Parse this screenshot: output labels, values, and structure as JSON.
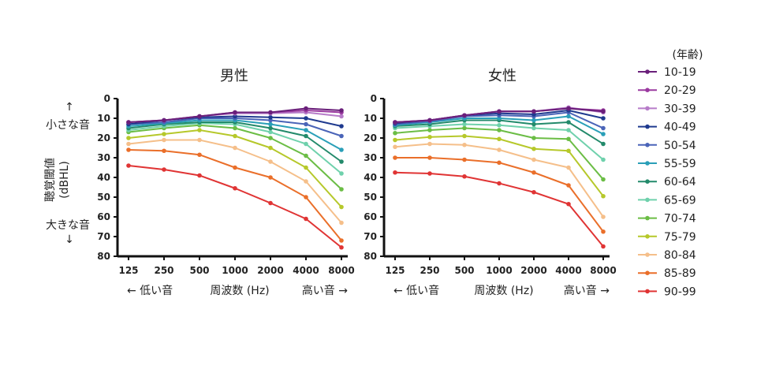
{
  "colors": {
    "10-19": "#6a1f7a",
    "20-29": "#9b3aa0",
    "30-39": "#b77cc9",
    "40-49": "#1f3a8f",
    "50-54": "#4a64b8",
    "55-59": "#2a9fb8",
    "60-64": "#238a6b",
    "65-69": "#6fd1ac",
    "70-74": "#6bbd45",
    "75-79": "#b6c82a",
    "80-84": "#f5bf8a",
    "85-89": "#ea6f2a",
    "90-99": "#e03434"
  },
  "legend": {
    "title": "(年齢)",
    "items": [
      "10-19",
      "20-29",
      "30-39",
      "40-49",
      "50-54",
      "55-59",
      "60-64",
      "65-69",
      "70-74",
      "75-79",
      "80-84",
      "85-89",
      "90-99"
    ]
  },
  "y_axis": {
    "top_label": "↑\n小さな音",
    "middle_label": "聴覚閾値\n(dBHL)",
    "bottom_label": "大きな音\n↓"
  },
  "x_axis": {
    "low_label": "← 低い音",
    "center_label": "周波数 (Hz)",
    "high_label": "高い音 →"
  },
  "chart_data": [
    {
      "type": "line",
      "title": "男性",
      "categories": [
        "125",
        "250",
        "500",
        "1000",
        "2000",
        "4000",
        "8000"
      ],
      "ylim": [
        0,
        80
      ],
      "y_inverted": true,
      "yticks": [
        0,
        10,
        20,
        30,
        40,
        50,
        60,
        70,
        80
      ],
      "series": [
        {
          "name": "10-19",
          "values": [
            12,
            11,
            9,
            7,
            7,
            5,
            6
          ]
        },
        {
          "name": "20-29",
          "values": [
            12,
            11,
            9,
            7,
            7,
            6,
            7
          ]
        },
        {
          "name": "30-39",
          "values": [
            12,
            11,
            9,
            7.5,
            7.5,
            7,
            9
          ]
        },
        {
          "name": "40-49",
          "values": [
            13,
            11,
            9.5,
            9,
            9.5,
            10,
            14
          ]
        },
        {
          "name": "50-54",
          "values": [
            13,
            12,
            10,
            10,
            11,
            13,
            19
          ]
        },
        {
          "name": "55-59",
          "values": [
            14,
            12.5,
            11,
            11,
            13,
            16,
            26
          ]
        },
        {
          "name": "60-64",
          "values": [
            15,
            13,
            12,
            12,
            15,
            19,
            32
          ]
        },
        {
          "name": "65-69",
          "values": [
            16,
            14,
            12.5,
            13,
            17,
            23,
            38
          ]
        },
        {
          "name": "70-74",
          "values": [
            17,
            15,
            13.5,
            15,
            20,
            29,
            46
          ]
        },
        {
          "name": "75-79",
          "values": [
            20,
            18,
            16,
            19,
            25,
            35,
            55
          ]
        },
        {
          "name": "80-84",
          "values": [
            23,
            21,
            21,
            25,
            32,
            42,
            63
          ]
        },
        {
          "name": "85-89",
          "values": [
            26,
            26.5,
            28.5,
            35,
            40,
            50,
            72
          ]
        },
        {
          "name": "90-99",
          "values": [
            34,
            36,
            39,
            45.5,
            53,
            61,
            75.5
          ]
        }
      ]
    },
    {
      "type": "line",
      "title": "女性",
      "categories": [
        "125",
        "250",
        "500",
        "1000",
        "2000",
        "4000",
        "8000"
      ],
      "ylim": [
        0,
        80
      ],
      "y_inverted": true,
      "yticks": [
        0,
        10,
        20,
        30,
        40,
        50,
        60,
        70,
        80
      ],
      "series": [
        {
          "name": "10-19",
          "values": [
            12,
            11,
            8.5,
            6.5,
            6.5,
            5,
            6.5
          ]
        },
        {
          "name": "20-29",
          "values": [
            12,
            11,
            8.5,
            6.5,
            6.5,
            5,
            6
          ]
        },
        {
          "name": "30-39",
          "values": [
            12,
            11,
            8.5,
            6.5,
            6.5,
            4.5,
            7
          ]
        },
        {
          "name": "40-49",
          "values": [
            12.5,
            11,
            8.5,
            7.5,
            8,
            6,
            10
          ]
        },
        {
          "name": "50-54",
          "values": [
            13,
            11.5,
            9,
            8.5,
            9,
            7,
            15
          ]
        },
        {
          "name": "55-59",
          "values": [
            13.5,
            12,
            10,
            10,
            11,
            9,
            18
          ]
        },
        {
          "name": "60-64",
          "values": [
            14,
            13,
            11,
            11,
            13,
            12,
            23
          ]
        },
        {
          "name": "65-69",
          "values": [
            15,
            14,
            13,
            13.5,
            15,
            16,
            31
          ]
        },
        {
          "name": "70-74",
          "values": [
            17.5,
            16,
            15,
            16,
            20,
            20.5,
            41
          ]
        },
        {
          "name": "75-79",
          "values": [
            21,
            19.5,
            19,
            20.5,
            25.5,
            26.5,
            49.5
          ]
        },
        {
          "name": "80-84",
          "values": [
            24.5,
            23,
            23.5,
            26,
            31,
            35,
            60
          ]
        },
        {
          "name": "85-89",
          "values": [
            30,
            30,
            31,
            32.5,
            37.5,
            44,
            67.5
          ]
        },
        {
          "name": "90-99",
          "values": [
            37.5,
            38,
            39.5,
            43,
            47.5,
            53.5,
            75
          ]
        }
      ]
    }
  ]
}
